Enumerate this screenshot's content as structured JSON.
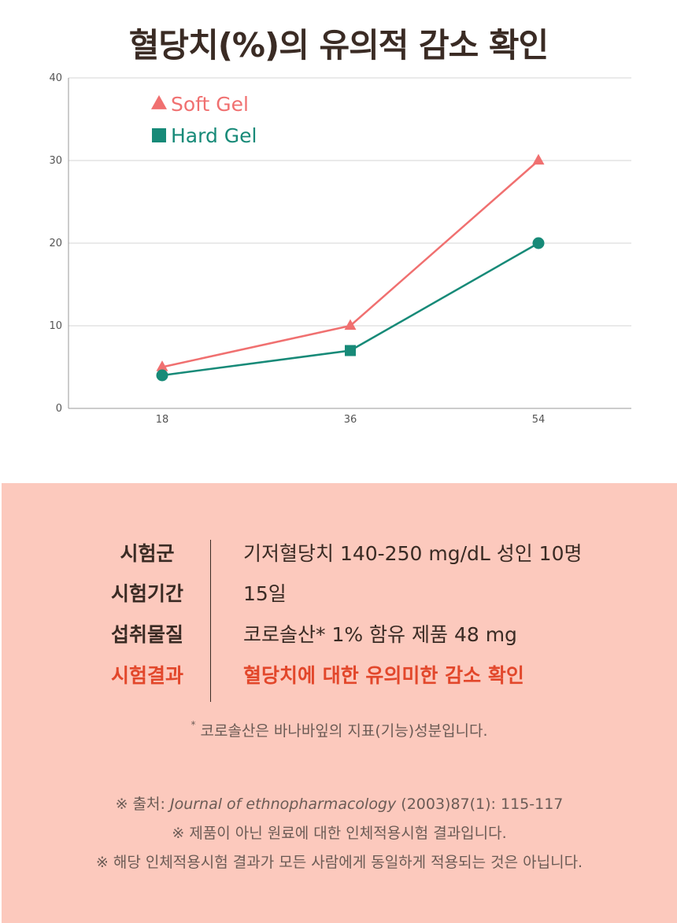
{
  "title": "혈당치(%)의 유의적 감소 확인",
  "chart_data": {
    "type": "line",
    "x": [
      18,
      36,
      54
    ],
    "ylim": [
      0,
      40
    ],
    "y_ticks": [
      0,
      10,
      20,
      30,
      40
    ],
    "grid": true,
    "legend_position": "top-left",
    "series": [
      {
        "name": "Soft Gel",
        "values": [
          5,
          10,
          30
        ],
        "color": "#f07070",
        "marker": "triangle"
      },
      {
        "name": "Hard Gel",
        "values": [
          4,
          7,
          20
        ],
        "color": "#178a78",
        "marker": "circle-square"
      }
    ]
  },
  "info": {
    "rows": [
      {
        "label": "시험군",
        "value": "기저혈당치 140-250 mg/dL 성인 10명"
      },
      {
        "label": "시험기간",
        "value": "15일"
      },
      {
        "label": "섭취물질",
        "value": "코로솔산* 1% 함유 제품 48 mg"
      },
      {
        "label": "시험결과",
        "value": "혈당치에 대한 유의미한 감소 확인"
      }
    ],
    "asterisk_note_mark": "*",
    "asterisk_note": "코로솔산은 바나바잎의 지표(기능)성분입니다.",
    "source_prefix": "※ 출처: ",
    "source_journal": "Journal of ethnopharmacology",
    "source_suffix": " (2003)87(1): 115-117",
    "note_1": "※ 제품이 아닌 원료에 대한 인체적용시험 결과입니다.",
    "note_2": "※ 해당 인체적용시험 결과가 모든 사람에게 동일하게 적용되는 것은 아닙니다."
  },
  "colors": {
    "accent_red": "#e2472b",
    "panel_bg": "#fcc9bd",
    "text_dark": "#3a2b24"
  }
}
